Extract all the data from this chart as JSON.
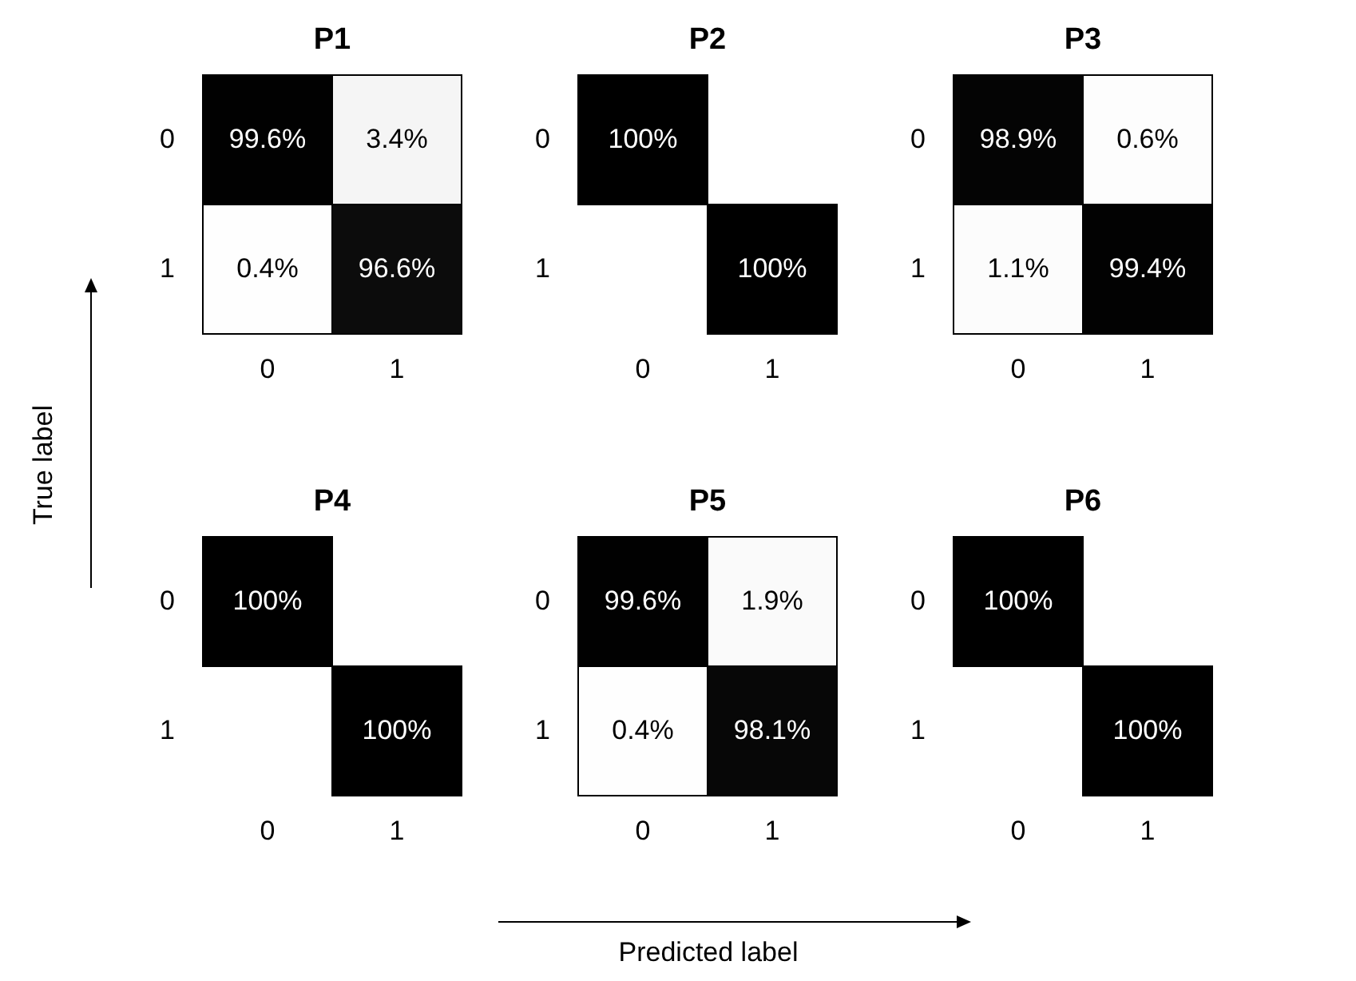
{
  "chart_data": [
    {
      "type": "heatmap",
      "title": "P1",
      "ylabel": "True label",
      "categories": [
        "0",
        "1"
      ],
      "y_categories": [
        "0",
        "1"
      ],
      "cells": [
        [
          99.6,
          3.4
        ],
        [
          0.4,
          96.6
        ]
      ],
      "cell_labels": [
        [
          "99.6%",
          "3.4%"
        ],
        [
          "0.4%",
          "96.6%"
        ]
      ]
    },
    {
      "type": "heatmap",
      "title": "P2",
      "categories": [
        "0",
        "1"
      ],
      "y_categories": [
        "0",
        "1"
      ],
      "cells": [
        [
          100,
          null
        ],
        [
          null,
          100
        ]
      ],
      "cell_labels": [
        [
          "100%",
          null
        ],
        [
          null,
          "100%"
        ]
      ]
    },
    {
      "type": "heatmap",
      "title": "P3",
      "categories": [
        "0",
        "1"
      ],
      "y_categories": [
        "0",
        "1"
      ],
      "cells": [
        [
          98.9,
          0.6
        ],
        [
          1.1,
          99.4
        ]
      ],
      "cell_labels": [
        [
          "98.9%",
          "0.6%"
        ],
        [
          "1.1%",
          "99.4%"
        ]
      ]
    },
    {
      "type": "heatmap",
      "title": "P4",
      "categories": [
        "0",
        "1"
      ],
      "y_categories": [
        "0",
        "1"
      ],
      "cells": [
        [
          100,
          null
        ],
        [
          null,
          100
        ]
      ],
      "cell_labels": [
        [
          "100%",
          null
        ],
        [
          null,
          "100%"
        ]
      ]
    },
    {
      "type": "heatmap",
      "title": "P5",
      "xlabel": "Predicted label",
      "categories": [
        "0",
        "1"
      ],
      "y_categories": [
        "0",
        "1"
      ],
      "cells": [
        [
          99.6,
          1.9
        ],
        [
          0.4,
          98.1
        ]
      ],
      "cell_labels": [
        [
          "99.6%",
          "1.9%"
        ],
        [
          "0.4%",
          "98.1%"
        ]
      ]
    },
    {
      "type": "heatmap",
      "title": "P6",
      "categories": [
        "0",
        "1"
      ],
      "y_categories": [
        "0",
        "1"
      ],
      "cells": [
        [
          100,
          null
        ],
        [
          null,
          100
        ]
      ],
      "cell_labels": [
        [
          "100%",
          null
        ],
        [
          null,
          "100%"
        ]
      ]
    }
  ]
}
